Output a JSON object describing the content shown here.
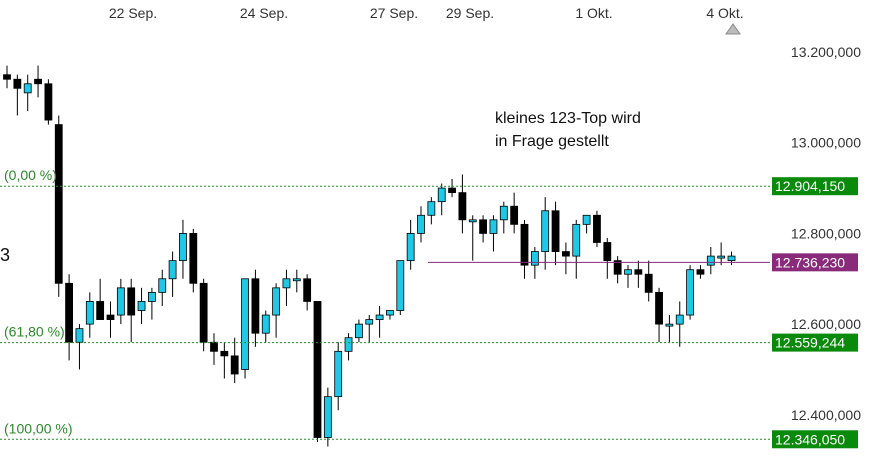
{
  "colors": {
    "bull": "#1ec8e6",
    "bear": "#000000",
    "fib": "#2a8a2a",
    "fib_label_bg": "#0a8a0a",
    "resistance": "#8a2a7a",
    "resistance_label_bg": "#8a2a7a",
    "axis_text": "#333333",
    "grid": "#ffffff"
  },
  "chart_data": {
    "type": "candlestick",
    "x_tick_labels": [
      "22 Sep.",
      "24 Sep.",
      "27 Sep.",
      "29 Sep.",
      "1 Okt.",
      "4 Okt."
    ],
    "y_ticks": [
      {
        "value": 13200,
        "label": "13.200,000"
      },
      {
        "value": 13000,
        "label": "13.000,000"
      },
      {
        "value": 12800,
        "label": "12.800,000"
      },
      {
        "value": 12600,
        "label": "12.600,000"
      },
      {
        "value": 12400,
        "label": "12.400,000"
      }
    ],
    "ylim": [
      12318,
      13253
    ],
    "fib_levels": [
      {
        "pct": "(0,00 %)",
        "value": 12904.15,
        "label": "12.904,150"
      },
      {
        "pct": "(61,80 %)",
        "value": 12559.244,
        "label": "12.559,244"
      },
      {
        "pct": "(100,00 %)",
        "value": 12346.05,
        "label": "12.346,050"
      }
    ],
    "resistance": {
      "value": 12736.23,
      "label": "12.736,230"
    },
    "annotation": [
      "kleines 123-Top wird",
      "in Frage gestellt"
    ],
    "left_edge_text": "3",
    "candles": [
      [
        13150,
        13170,
        13120,
        13140
      ],
      [
        13140,
        13150,
        13060,
        13120
      ],
      [
        13110,
        13150,
        13070,
        13130
      ],
      [
        13140,
        13170,
        13100,
        13130
      ],
      [
        13130,
        13140,
        13040,
        13050
      ],
      [
        13040,
        13060,
        12660,
        12690
      ],
      [
        12690,
        12710,
        12520,
        12560
      ],
      [
        12560,
        12600,
        12500,
        12590
      ],
      [
        12600,
        12670,
        12570,
        12650
      ],
      [
        12650,
        12700,
        12610,
        12610
      ],
      [
        12620,
        12650,
        12570,
        12610
      ],
      [
        12620,
        12700,
        12600,
        12680
      ],
      [
        12680,
        12700,
        12560,
        12620
      ],
      [
        12630,
        12680,
        12600,
        12650
      ],
      [
        12650,
        12680,
        12610,
        12670
      ],
      [
        12670,
        12720,
        12640,
        12700
      ],
      [
        12700,
        12760,
        12660,
        12740
      ],
      [
        12740,
        12830,
        12700,
        12800
      ],
      [
        12800,
        12810,
        12670,
        12690
      ],
      [
        12690,
        12700,
        12540,
        12560
      ],
      [
        12560,
        12580,
        12510,
        12540
      ],
      [
        12540,
        12560,
        12480,
        12530
      ],
      [
        12530,
        12570,
        12470,
        12490
      ],
      [
        12500,
        12700,
        12480,
        12700
      ],
      [
        12700,
        12720,
        12550,
        12580
      ],
      [
        12580,
        12630,
        12560,
        12620
      ],
      [
        12620,
        12690,
        12570,
        12680
      ],
      [
        12680,
        12720,
        12640,
        12700
      ],
      [
        12700,
        12720,
        12670,
        12700
      ],
      [
        12700,
        12710,
        12630,
        12650
      ],
      [
        12650,
        12650,
        12340,
        12350
      ],
      [
        12350,
        12460,
        12330,
        12440
      ],
      [
        12440,
        12560,
        12410,
        12540
      ],
      [
        12540,
        12580,
        12520,
        12570
      ],
      [
        12570,
        12610,
        12560,
        12600
      ],
      [
        12600,
        12620,
        12560,
        12610
      ],
      [
        12610,
        12640,
        12570,
        12620
      ],
      [
        12620,
        12630,
        12610,
        12630
      ],
      [
        12630,
        12740,
        12620,
        12740
      ],
      [
        12740,
        12830,
        12720,
        12800
      ],
      [
        12800,
        12860,
        12780,
        12840
      ],
      [
        12840,
        12880,
        12820,
        12870
      ],
      [
        12870,
        12910,
        12840,
        12900
      ],
      [
        12900,
        12920,
        12880,
        12890
      ],
      [
        12890,
        12930,
        12800,
        12830
      ],
      [
        12830,
        12840,
        12740,
        12830
      ],
      [
        12830,
        12840,
        12780,
        12800
      ],
      [
        12800,
        12840,
        12760,
        12830
      ],
      [
        12830,
        12870,
        12800,
        12860
      ],
      [
        12860,
        12890,
        12800,
        12820
      ],
      [
        12820,
        12830,
        12700,
        12730
      ],
      [
        12730,
        12770,
        12700,
        12760
      ],
      [
        12760,
        12880,
        12720,
        12850
      ],
      [
        12850,
        12870,
        12730,
        12760
      ],
      [
        12760,
        12780,
        12710,
        12750
      ],
      [
        12750,
        12830,
        12700,
        12820
      ],
      [
        12820,
        12840,
        12800,
        12840
      ],
      [
        12840,
        12850,
        12770,
        12780
      ],
      [
        12780,
        12790,
        12700,
        12740
      ],
      [
        12740,
        12750,
        12690,
        12710
      ],
      [
        12710,
        12730,
        12680,
        12720
      ],
      [
        12720,
        12740,
        12680,
        12710
      ],
      [
        12710,
        12740,
        12650,
        12670
      ],
      [
        12670,
        12680,
        12560,
        12600
      ],
      [
        12600,
        12620,
        12560,
        12600
      ],
      [
        12600,
        12650,
        12550,
        12620
      ],
      [
        12620,
        12730,
        12610,
        12720
      ],
      [
        12720,
        12730,
        12700,
        12710
      ],
      [
        12730,
        12770,
        12710,
        12750
      ],
      [
        12750,
        12780,
        12730,
        12750
      ],
      [
        12740,
        12760,
        12730,
        12750
      ]
    ]
  }
}
